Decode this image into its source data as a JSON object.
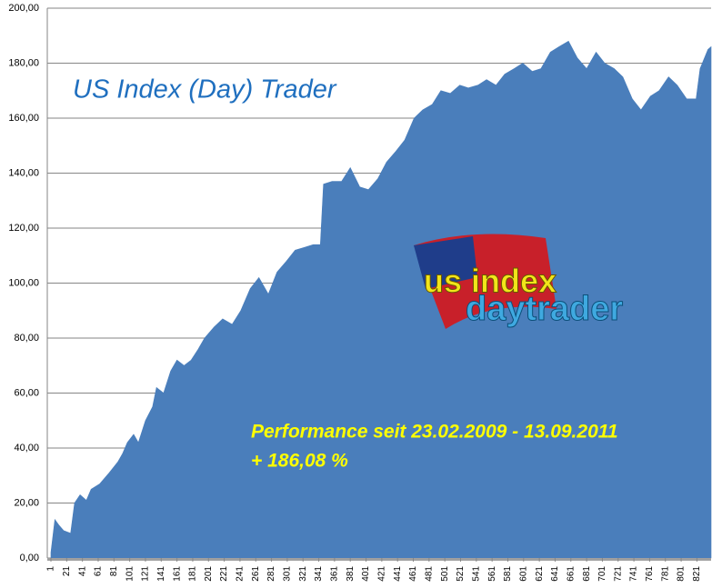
{
  "chart_data": {
    "type": "area",
    "title": "US Index (Day) Trader",
    "annotations": [
      "Performance  seit  23.02.2009 - 13.09.2011",
      "+ 186,08  %"
    ],
    "logo_text": [
      "us index",
      "daytrader"
    ],
    "color": "#4a7ebb",
    "grid": true,
    "x": [
      1,
      6,
      11,
      17,
      26,
      31,
      38,
      46,
      52,
      63,
      75,
      86,
      92,
      98,
      106,
      112,
      121,
      130,
      135,
      144,
      153,
      161,
      170,
      179,
      188,
      196,
      208,
      219,
      231,
      242,
      254,
      265,
      277,
      288,
      300,
      311,
      323,
      334,
      343,
      347,
      358,
      370,
      381,
      393,
      404,
      416,
      427,
      439,
      450,
      462,
      473,
      485,
      496,
      508,
      520,
      531,
      543,
      554,
      566,
      577,
      589,
      600,
      612,
      623,
      635,
      646,
      658,
      669,
      681,
      693,
      704,
      716,
      727,
      739,
      750,
      762,
      773,
      785,
      796,
      808,
      820,
      825,
      835,
      839
    ],
    "values": [
      2,
      14,
      12,
      10,
      9,
      20,
      23,
      21,
      25,
      27,
      31,
      35,
      38,
      42,
      45,
      42,
      50,
      55,
      62,
      60,
      68,
      72,
      70,
      72,
      76,
      80,
      84,
      87,
      85,
      90,
      98,
      102,
      96,
      104,
      108,
      112,
      113,
      114,
      114,
      136,
      137,
      137,
      142,
      135,
      134,
      138,
      144,
      148,
      152,
      160,
      163,
      165,
      170,
      169,
      172,
      171,
      172,
      174,
      172,
      176,
      178,
      180,
      177,
      178,
      184,
      186,
      188,
      182,
      178,
      184,
      180,
      178,
      175,
      167,
      163,
      168,
      170,
      175,
      172,
      167,
      167,
      178,
      185,
      186
    ],
    "xlim": [
      1,
      839
    ],
    "xticks": [
      1,
      21,
      41,
      61,
      81,
      101,
      121,
      141,
      161,
      181,
      201,
      221,
      241,
      261,
      281,
      301,
      321,
      341,
      361,
      381,
      401,
      421,
      441,
      461,
      481,
      501,
      521,
      541,
      561,
      581,
      601,
      621,
      641,
      661,
      681,
      701,
      721,
      741,
      761,
      781,
      801,
      821
    ],
    "ylim": [
      0,
      200
    ],
    "yticks": [
      {
        "value": 0,
        "label": "0,00"
      },
      {
        "value": 20,
        "label": "20,00"
      },
      {
        "value": 40,
        "label": "40,00"
      },
      {
        "value": 60,
        "label": "60,00"
      },
      {
        "value": 80,
        "label": "80,00"
      },
      {
        "value": 100,
        "label": "100,00"
      },
      {
        "value": 120,
        "label": "120,00"
      },
      {
        "value": 140,
        "label": "140,00"
      },
      {
        "value": 160,
        "label": "160,00"
      },
      {
        "value": 180,
        "label": "180,00"
      },
      {
        "value": 200,
        "label": "200,00"
      }
    ]
  }
}
